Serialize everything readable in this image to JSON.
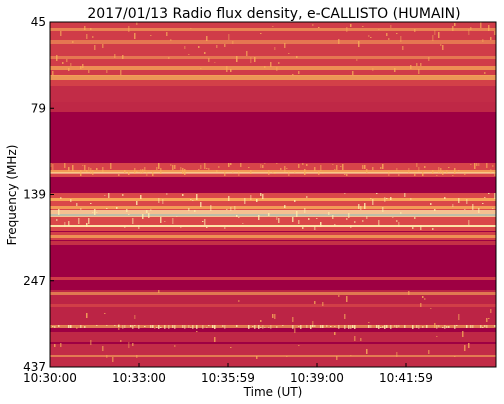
{
  "chart_data": {
    "type": "heatmap",
    "title": "2017/01/13  Radio flux density, e-CALLISTO (HUMAIN)",
    "xlabel": "Time (UT)",
    "ylabel": "Frequency (MHz)",
    "x_ticks": [
      "10:30:00",
      "10:33:00",
      "10:35:59",
      "10:39:00",
      "10:41:59"
    ],
    "y_ticks": [
      "45",
      "79",
      "139",
      "247",
      "437"
    ],
    "y_inverted": true,
    "grid": false,
    "colors": {
      "background": "#9e0043",
      "mid": "#e0504a",
      "high": "#f9b05a",
      "peak": "#fff4b0",
      "burst": "#6fb8c8"
    }
  }
}
